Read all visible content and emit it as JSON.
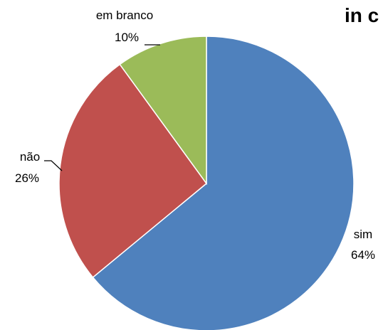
{
  "chart_data": {
    "type": "pie",
    "title": "in c",
    "categories": [
      "sim",
      "não",
      "em branco"
    ],
    "values": [
      64,
      26,
      10
    ],
    "value_labels": [
      "64%",
      "26%",
      "10%"
    ],
    "colors": [
      "#4F81BD",
      "#C0504D",
      "#9BBB59"
    ],
    "start": "12 o'clock",
    "direction": "clockwise",
    "legend": "none",
    "data_labels": "outside with leader lines"
  }
}
